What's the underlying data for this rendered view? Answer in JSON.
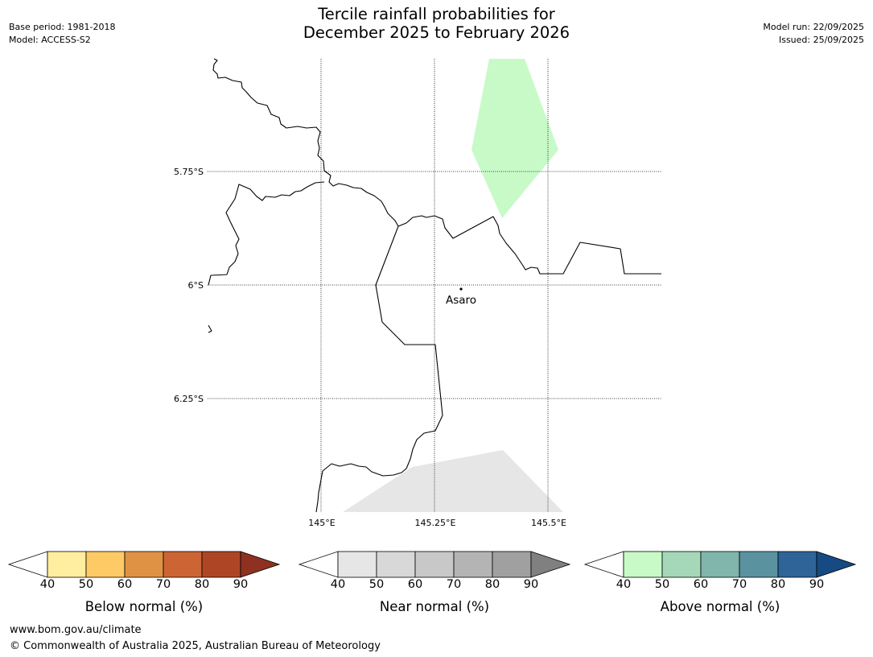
{
  "header": {
    "title_line1": "Tercile rainfall probabilities for",
    "title_line2": "December 2025 to February 2026",
    "base_period": "Base period: 1981-2018",
    "model": "Model: ACCESS-S2",
    "model_run": "Model run: 22/09/2025",
    "issued": "Issued: 25/09/2025"
  },
  "map": {
    "lat_labels": [
      "5.75°S",
      "6°S",
      "6.25°S"
    ],
    "lon_labels": [
      "145°E",
      "145.25°E",
      "145.5°E"
    ],
    "place_name": "Asaro",
    "colors": {
      "above_normal_area": "#c8fac8",
      "near_normal_area": "#e6e6e6",
      "border": "#000000"
    }
  },
  "colorbars": [
    {
      "label": "Below normal (%)",
      "ticks": [
        "40",
        "50",
        "60",
        "70",
        "80",
        "90"
      ],
      "colors": [
        "#ffeea0",
        "#fdca66",
        "#e09244",
        "#cd6434",
        "#ae4626",
        "#8e3120"
      ]
    },
    {
      "label": "Near normal (%)",
      "ticks": [
        "40",
        "50",
        "60",
        "70",
        "80",
        "90"
      ],
      "colors": [
        "#e6e6e6",
        "#d8d8d8",
        "#c8c8c8",
        "#b4b4b4",
        "#a0a0a0",
        "#808080"
      ]
    },
    {
      "label": "Above normal (%)",
      "ticks": [
        "40",
        "50",
        "60",
        "70",
        "80",
        "90"
      ],
      "colors": [
        "#c8fac8",
        "#a4d8b8",
        "#80b6ac",
        "#5a92a0",
        "#2e6498",
        "#164a82"
      ]
    }
  ],
  "footer": {
    "url": "www.bom.gov.au/climate",
    "copyright": "© Commonwealth of Australia 2025, Australian Bureau of Meteorology"
  }
}
